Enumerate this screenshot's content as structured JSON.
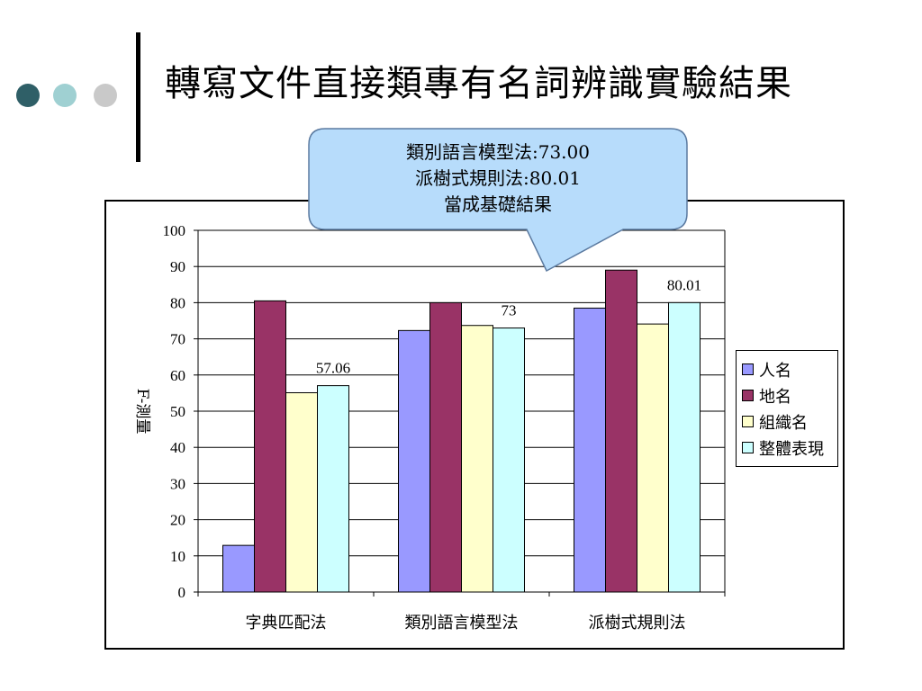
{
  "slide": {
    "title": "轉寫文件直接類專有名詞辨識實驗結果",
    "decor_dot_colors": [
      "#2f5f67",
      "#9fd0d2",
      "#c9c9c9"
    ]
  },
  "callout": {
    "lines": [
      "類別語言模型法:73.00",
      "派樹式規則法:80.01",
      "當成基礎結果"
    ],
    "fill": "#b7dcfb",
    "stroke": "#5b7aa0"
  },
  "chart_data": {
    "type": "bar",
    "categories": [
      "字典匹配法",
      "類別語言模型法",
      "派樹式規則法"
    ],
    "series": [
      {
        "name": "人名",
        "color": "#9999ff",
        "values": [
          12.9,
          72.3,
          78.5
        ]
      },
      {
        "name": "地名",
        "color": "#993366",
        "values": [
          80.5,
          80.0,
          89.0
        ]
      },
      {
        "name": "組織名",
        "color": "#ffffcc",
        "values": [
          55.1,
          73.7,
          74.1
        ]
      },
      {
        "name": "整體表現",
        "color": "#ccffff",
        "values": [
          57.06,
          73.0,
          80.01
        ]
      }
    ],
    "data_labels": [
      {
        "category": 0,
        "series": 3,
        "text": "57.06"
      },
      {
        "category": 1,
        "series": 3,
        "text": "73"
      },
      {
        "category": 2,
        "series": 3,
        "text": "80.01"
      }
    ],
    "ylabel": "F-測量",
    "xlabel": "",
    "ylim": [
      0,
      100
    ],
    "yticks": [
      0,
      10,
      20,
      30,
      40,
      50,
      60,
      70,
      80,
      90,
      100
    ],
    "grid": true,
    "legend_position": "right"
  }
}
